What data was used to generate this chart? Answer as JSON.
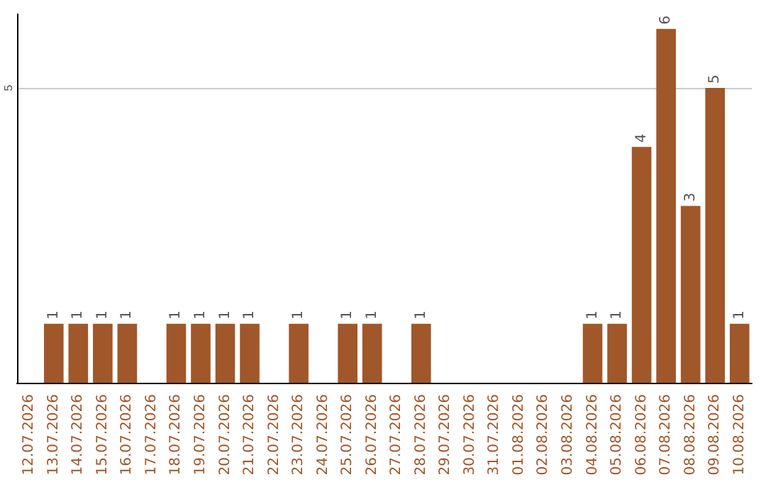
{
  "chart_data": {
    "type": "bar",
    "categories": [
      "12.07.2026",
      "13.07.2026",
      "14.07.2026",
      "15.07.2026",
      "16.07.2026",
      "17.07.2026",
      "18.07.2026",
      "19.07.2026",
      "20.07.2026",
      "21.07.2026",
      "22.07.2026",
      "23.07.2026",
      "24.07.2026",
      "25.07.2026",
      "26.07.2026",
      "27.07.2026",
      "28.07.2026",
      "29.07.2026",
      "30.07.2026",
      "31.07.2026",
      "01.08.2026",
      "02.08.2026",
      "03.08.2026",
      "04.08.2026",
      "05.08.2026",
      "06.08.2026",
      "07.08.2026",
      "08.08.2026",
      "09.08.2026",
      "10.08.2026"
    ],
    "values": [
      0,
      1,
      1,
      1,
      1,
      0,
      1,
      1,
      1,
      1,
      0,
      1,
      0,
      1,
      1,
      0,
      1,
      0,
      0,
      0,
      0,
      0,
      0,
      1,
      1,
      4,
      6,
      3,
      5,
      1
    ],
    "value_labels": [
      null,
      "1",
      "1",
      "1",
      "1",
      null,
      "1",
      "1",
      "1",
      "1",
      null,
      "1",
      null,
      "1",
      "1",
      null,
      "1",
      null,
      null,
      null,
      null,
      null,
      null,
      "1",
      "1",
      "4",
      "6",
      "3",
      "5",
      "1"
    ],
    "color": "#a0572a",
    "ylim": [
      0,
      6.25
    ],
    "yticks": [
      5
    ],
    "grid": "y"
  }
}
